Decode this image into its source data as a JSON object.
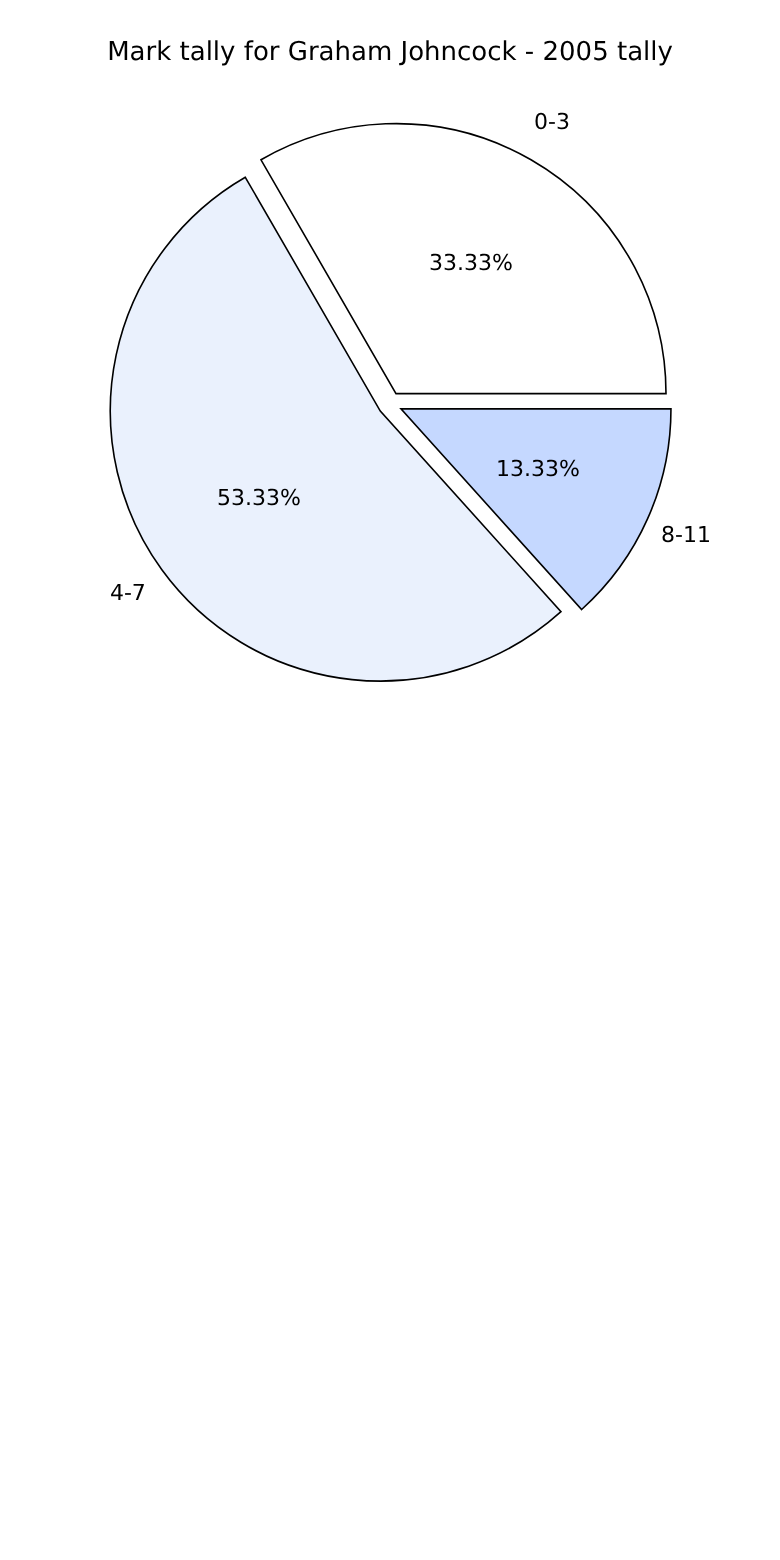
{
  "chart_data": {
    "type": "pie",
    "title": "Mark tally for Graham Johncock - 2005 tally",
    "categories": [
      "0-3",
      "4-7",
      "8-11"
    ],
    "values": [
      33.33,
      53.33,
      13.33
    ],
    "colors": [
      "#ffffff",
      "#eaf1fd",
      "#c5d8ff"
    ],
    "value_labels": [
      "33.33%",
      "53.33%",
      "13.33%"
    ],
    "legend": false
  }
}
